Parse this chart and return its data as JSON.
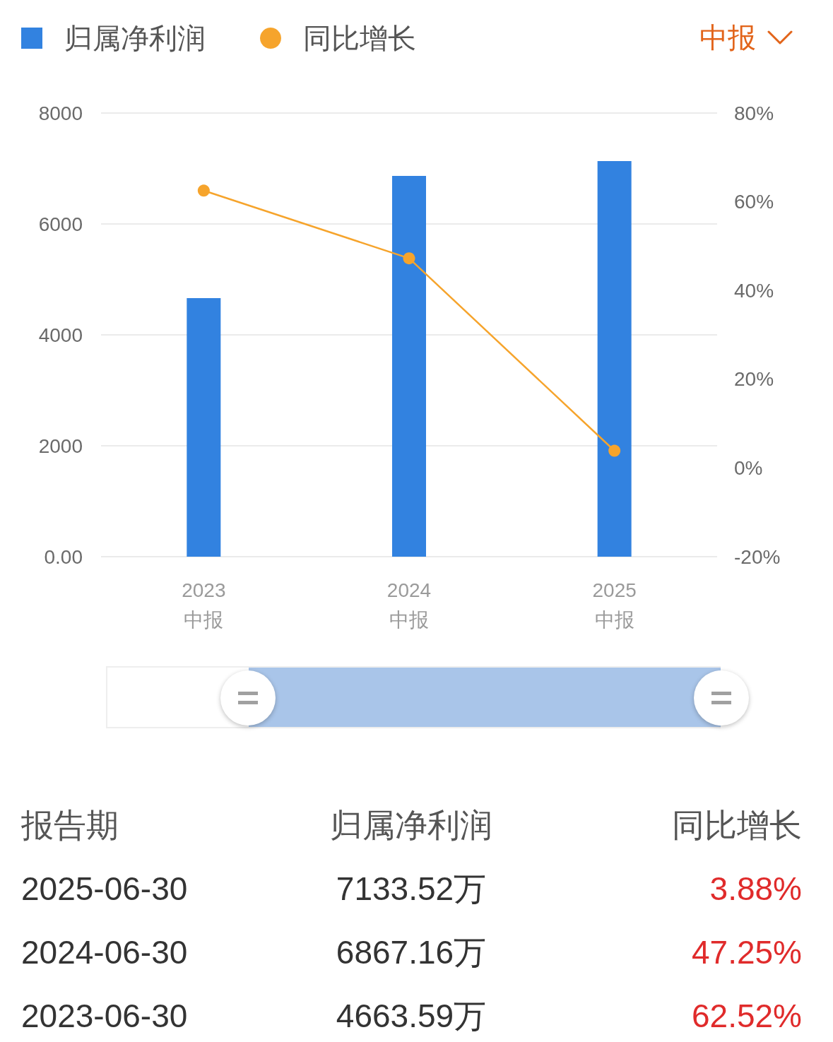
{
  "chart_data": [
    {
      "type": "bar",
      "categories": [
        "2023\n中报",
        "2024\n中报",
        "2025\n中报"
      ],
      "series": [
        {
          "name": "归属净利润",
          "color": "#3282e0",
          "values": [
            4663.59,
            6867.16,
            7133.52
          ]
        },
        {
          "name": "同比增长",
          "type": "line",
          "axis": "y2",
          "color": "#f6a42c",
          "values": [
            62.52,
            47.25,
            3.88
          ]
        }
      ],
      "ylim": [
        0,
        8000
      ],
      "yticks": [
        {
          "value": 0,
          "label": "0.00"
        },
        2000,
        4000,
        6000,
        8000
      ],
      "y2lim": [
        -20,
        80
      ],
      "y2ticks": [
        {
          "value": -20,
          "label": "-20%"
        },
        {
          "value": 0,
          "label": "0%"
        },
        {
          "value": 20,
          "label": "20%"
        },
        {
          "value": 40,
          "label": "40%"
        },
        {
          "value": 60,
          "label": "60%"
        },
        {
          "value": 80,
          "label": "80%"
        }
      ],
      "grid": "y",
      "legend": "top left",
      "marker": "circle",
      "line_style": "solid",
      "annotations": [
        "中报"
      ]
    },
    {
      "type": "other",
      "annotations": [
        "报告期",
        "归属净利润",
        "同比增长",
        "2025-06-30",
        "7133.52万",
        "3.88%",
        "2024-06-30",
        "6867.16万",
        "47.25%",
        "2023-06-30",
        "4663.59万",
        "62.52%"
      ]
    }
  ]
}
